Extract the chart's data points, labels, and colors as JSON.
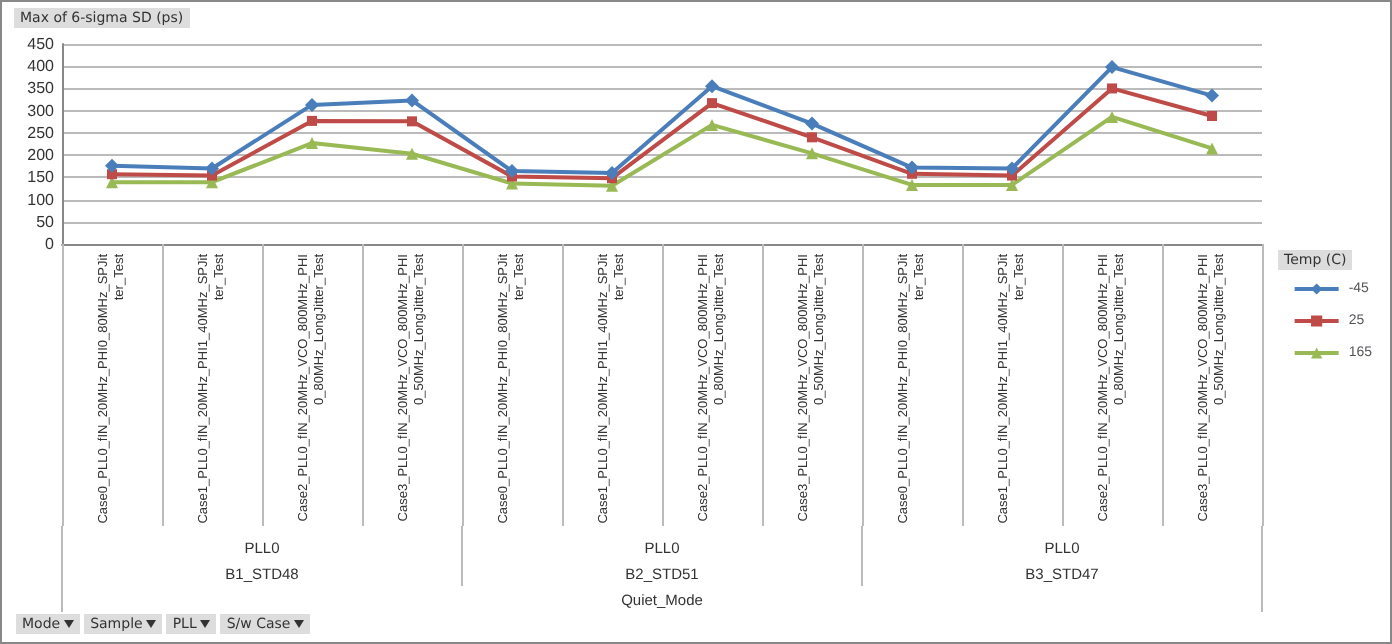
{
  "chart_data": {
    "type": "line",
    "ylabel": "Max of 6-sigma SD (ps)",
    "legend_title": "Temp (C)",
    "legend": "right",
    "grid": "y",
    "categories": [
      "Case0_PLL0_fIN_20MHz_PHI0_80MHz_SPJitter_Test",
      "Case1_PLL0_fIN_20MHz_PHI1_40MHz_SPJitter_Test",
      "Case2_PLL0_fIN_20MHz_VCO_800MHz_PHI0_80MHz_LongJitter_Test",
      "Case3_PLL0_fIN_20MHz_VCO_800MHz_PHI0_50MHz_LongJitter_Test",
      "Case0_PLL0_fIN_20MHz_PHI0_80MHz_SPJitter_Test",
      "Case1_PLL0_fIN_20MHz_PHI1_40MHz_SPJitter_Test",
      "Case2_PLL0_fIN_20MHz_VCO_800MHz_PHI0_80MHz_LongJitter_Test",
      "Case3_PLL0_fIN_20MHz_VCO_800MHz_PHI0_50MHz_LongJitter_Test",
      "Case0_PLL0_fIN_20MHz_PHI0_80MHz_SPJitter_Test",
      "Case1_PLL0_fIN_20MHz_PHI1_40MHz_SPJitter_Test",
      "Case2_PLL0_fIN_20MHz_VCO_800MHz_PHI0_80MHz_LongJitter_Test",
      "Case3_PLL0_fIN_20MHz_VCO_800MHz_PHI0_50MHz_LongJitter_Test"
    ],
    "series": [
      {
        "name": "-45",
        "color": "#4a7ebb",
        "marker": "diamond",
        "values": [
          176,
          170,
          313,
          323,
          164,
          160,
          355,
          271,
          172,
          170,
          398,
          334
        ]
      },
      {
        "name": "25",
        "color": "#be4b48",
        "marker": "square",
        "values": [
          157,
          154,
          277,
          276,
          152,
          148,
          317,
          240,
          158,
          154,
          350,
          288
        ]
      },
      {
        "name": "165",
        "color": "#98b954",
        "marker": "triangle",
        "values": [
          139,
          139,
          227,
          203,
          136,
          131,
          268,
          204,
          133,
          133,
          286,
          215
        ]
      }
    ],
    "ylim": [
      0,
      450
    ],
    "yticks": [
      0,
      50,
      100,
      150,
      200,
      250,
      300,
      350,
      400,
      450
    ],
    "annotations": [
      "PLL0",
      "PLL0",
      "PLL0",
      "B1_STD48",
      "B2_STD51",
      "B3_STD47",
      "Quiet_Mode",
      "Mode",
      "Sample",
      "PLL",
      "S/w Case"
    ]
  }
}
